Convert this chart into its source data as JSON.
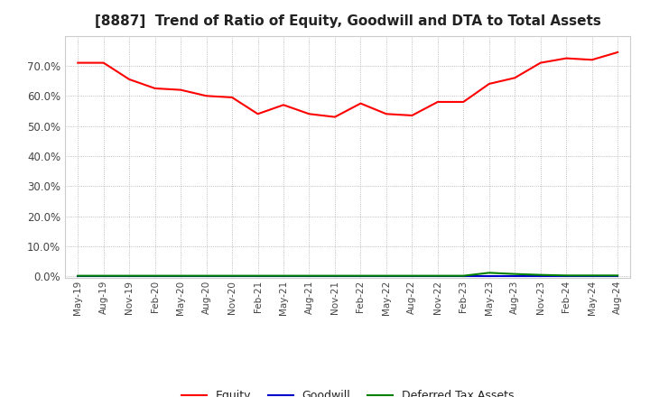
{
  "title": "[8887]  Trend of Ratio of Equity, Goodwill and DTA to Total Assets",
  "title_fontsize": 11,
  "background_color": "#ffffff",
  "grid_color": "#aaaaaa",
  "ylim": [
    -0.005,
    0.8
  ],
  "yticks": [
    0.0,
    0.1,
    0.2,
    0.3,
    0.4,
    0.5,
    0.6,
    0.7
  ],
  "equity_values": [
    0.71,
    0.71,
    0.655,
    0.625,
    0.62,
    0.6,
    0.595,
    0.54,
    0.57,
    0.54,
    0.53,
    0.575,
    0.54,
    0.535,
    0.58,
    0.58,
    0.64,
    0.66,
    0.71,
    0.725,
    0.72,
    0.745
  ],
  "goodwill_values": [
    0.0,
    0.0,
    0.0,
    0.0,
    0.0,
    0.0,
    0.0,
    0.0,
    0.0,
    0.0,
    0.0,
    0.0,
    0.0,
    0.0,
    0.0,
    0.0,
    0.0,
    0.0,
    0.0,
    0.0,
    0.0,
    0.0
  ],
  "dta_values": [
    0.002,
    0.002,
    0.002,
    0.002,
    0.002,
    0.002,
    0.002,
    0.002,
    0.002,
    0.002,
    0.002,
    0.002,
    0.002,
    0.002,
    0.002,
    0.002,
    0.012,
    0.008,
    0.005,
    0.003,
    0.003,
    0.003
  ],
  "equity_color": "#ff0000",
  "goodwill_color": "#0000cc",
  "dta_color": "#008000",
  "line_width": 1.5,
  "legend_labels": [
    "Equity",
    "Goodwill",
    "Deferred Tax Assets"
  ],
  "xtick_labels": [
    "May-19",
    "Aug-19",
    "Nov-19",
    "Feb-20",
    "May-20",
    "Aug-20",
    "Nov-20",
    "Feb-21",
    "May-21",
    "Aug-21",
    "Nov-21",
    "Feb-22",
    "May-22",
    "Aug-22",
    "Nov-22",
    "Feb-23",
    "May-23",
    "Aug-23",
    "Nov-23",
    "Feb-24",
    "May-24",
    "Aug-24"
  ]
}
